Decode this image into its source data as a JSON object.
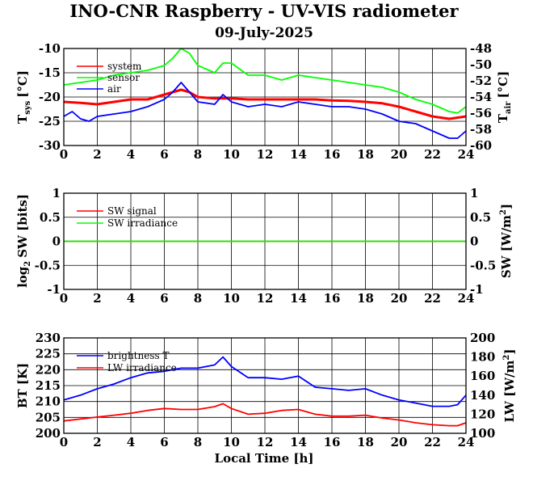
{
  "title": "INO-CNR Raspberry - UV-VIS radiometer",
  "subtitle": "09-July-2025",
  "colors": {
    "red": "#ff0000",
    "green": "#00ff00",
    "blue": "#0000ff",
    "axis": "#000000"
  },
  "panels": [
    {
      "id": "temperatures",
      "ylabel_left": "T",
      "ylabel_left_sub": "sys",
      "ylabel_left_unit": "[°C]",
      "ylabel_right": "T",
      "ylabel_right_sub": "air",
      "ylabel_right_unit": "[°C]",
      "yticks_left": [
        "-10",
        "-15",
        "-20",
        "-25",
        "-30"
      ],
      "yticks_right": [
        "-48",
        "-50",
        "-52",
        "-54",
        "-56",
        "-58",
        "-60"
      ],
      "legend": [
        "system",
        "sensor",
        "air"
      ]
    },
    {
      "id": "sw",
      "ylabel_left": "log",
      "ylabel_left_sub": "2",
      "ylabel_left_unit": "SW [bits]",
      "ylabel_right": "SW [W/m",
      "ylabel_right_sup": "2",
      "ylabel_right_unit": "]",
      "yticks_left": [
        "1",
        "0.5",
        "0",
        "-0.5",
        "-1"
      ],
      "yticks_right": [
        "1",
        "0.5",
        "0",
        "-0.5",
        "-1"
      ],
      "legend": [
        "SW signal",
        "SW irradiance"
      ]
    },
    {
      "id": "lw",
      "ylabel_left": "BT [K]",
      "ylabel_right": "LW [W/m",
      "ylabel_right_sup": "2",
      "ylabel_right_unit": "]",
      "yticks_left": [
        "230",
        "225",
        "220",
        "215",
        "210",
        "205",
        "200"
      ],
      "yticks_right": [
        "200",
        "180",
        "160",
        "140",
        "120",
        "100"
      ],
      "legend": [
        "brightness T",
        "LW irradiance"
      ]
    }
  ],
  "xticks": [
    "0",
    "2",
    "4",
    "6",
    "8",
    "10",
    "12",
    "14",
    "16",
    "18",
    "20",
    "22",
    "24"
  ],
  "xlabel": "Local Time [h]",
  "chart_data": [
    {
      "type": "line",
      "x_axis": "Local Time [h]",
      "xlim": [
        0,
        24
      ],
      "ylim_left": [
        -30,
        -10
      ],
      "ylim_right": [
        -60,
        -48
      ],
      "series": [
        {
          "name": "system",
          "color": "#ff0000",
          "axis": "left",
          "x": [
            0,
            1,
            2,
            3,
            4,
            5,
            6,
            6.5,
            7,
            7.5,
            8,
            9,
            10,
            11,
            12,
            13,
            14,
            15,
            16,
            17,
            18,
            19,
            20,
            21,
            22,
            23,
            24
          ],
          "y": [
            -21,
            -21.2,
            -21.5,
            -21,
            -20.5,
            -20.5,
            -19.5,
            -19,
            -18.5,
            -19,
            -20,
            -20.3,
            -20.3,
            -20.5,
            -20.5,
            -20.5,
            -20.5,
            -20.5,
            -20.7,
            -20.8,
            -21,
            -21.3,
            -22,
            -23,
            -24,
            -24.5,
            -24
          ]
        },
        {
          "name": "sensor",
          "color": "#00ff00",
          "axis": "left",
          "x": [
            0,
            1,
            2,
            3,
            4,
            5,
            6,
            6.5,
            7,
            7.5,
            8,
            9,
            9.5,
            10,
            11,
            12,
            13,
            14,
            15,
            16,
            17,
            18,
            19,
            20,
            21,
            22,
            23,
            23.5,
            24
          ],
          "y": [
            -17.5,
            -17,
            -16.5,
            -15.5,
            -15,
            -14.5,
            -13.5,
            -12,
            -10,
            -11,
            -13.5,
            -15,
            -13,
            -13,
            -15.5,
            -15.5,
            -16.5,
            -15.5,
            -16,
            -16.5,
            -17,
            -17.5,
            -18,
            -19,
            -20.5,
            -21.5,
            -23,
            -23.3,
            -22
          ]
        },
        {
          "name": "air",
          "color": "#0000ff",
          "axis": "left",
          "x": [
            0,
            0.5,
            1,
            1.5,
            2,
            3,
            4,
            5,
            6,
            6.5,
            7,
            7.5,
            8,
            9,
            9.5,
            10,
            11,
            12,
            13,
            14,
            15,
            16,
            17,
            18,
            19,
            20,
            21,
            22,
            23,
            23.5,
            24
          ],
          "y": [
            -24,
            -23,
            -24.5,
            -25,
            -24,
            -23.5,
            -23,
            -22,
            -20.5,
            -19,
            -17,
            -19,
            -21,
            -21.5,
            -19.5,
            -21,
            -22,
            -21.5,
            -22,
            -21,
            -21.5,
            -22,
            -22,
            -22.5,
            -23.5,
            -25,
            -25.5,
            -27,
            -28.5,
            -28.5,
            -27
          ]
        }
      ]
    },
    {
      "type": "line",
      "x_axis": "Local Time [h]",
      "xlim": [
        0,
        24
      ],
      "ylim_left": [
        -1,
        1
      ],
      "ylim_right": [
        -1,
        1
      ],
      "series": [
        {
          "name": "SW signal",
          "color": "#ff0000",
          "axis": "left",
          "x": [
            0,
            24
          ],
          "y": [
            0,
            0
          ]
        },
        {
          "name": "SW irradiance",
          "color": "#00ff00",
          "axis": "right",
          "x": [
            0,
            24
          ],
          "y": [
            0,
            0
          ]
        }
      ]
    },
    {
      "type": "line",
      "x_axis": "Local Time [h]",
      "xlim": [
        0,
        24
      ],
      "ylim_left": [
        200,
        230
      ],
      "ylim_right": [
        100,
        200
      ],
      "series": [
        {
          "name": "brightness T",
          "color": "#0000ff",
          "axis": "left",
          "x": [
            0,
            1,
            2,
            3,
            4,
            5,
            6,
            7,
            8,
            9,
            9.5,
            10,
            11,
            12,
            13,
            14,
            15,
            16,
            17,
            18,
            19,
            20,
            21,
            22,
            23,
            23.5,
            24
          ],
          "y": [
            210.5,
            212,
            214,
            215.5,
            217.5,
            219,
            219.5,
            220.5,
            220.5,
            221.5,
            224,
            221,
            217.5,
            217.5,
            217,
            218,
            214.5,
            214,
            213.5,
            214,
            212,
            210.5,
            209.5,
            208.5,
            208.5,
            209,
            212
          ]
        },
        {
          "name": "LW irradiance",
          "color": "#ff0000",
          "axis": "right",
          "x": [
            0,
            1,
            2,
            3,
            4,
            5,
            6,
            7,
            8,
            9,
            9.5,
            10,
            11,
            12,
            13,
            14,
            15,
            16,
            17,
            18,
            19,
            20,
            21,
            22,
            23,
            23.5,
            24
          ],
          "y": [
            113,
            115,
            117,
            119,
            121,
            124,
            126,
            125,
            125,
            128,
            131,
            126,
            120,
            121,
            124,
            125,
            120,
            118,
            118,
            119,
            116,
            114,
            111,
            109,
            108,
            108,
            111
          ]
        }
      ]
    }
  ]
}
